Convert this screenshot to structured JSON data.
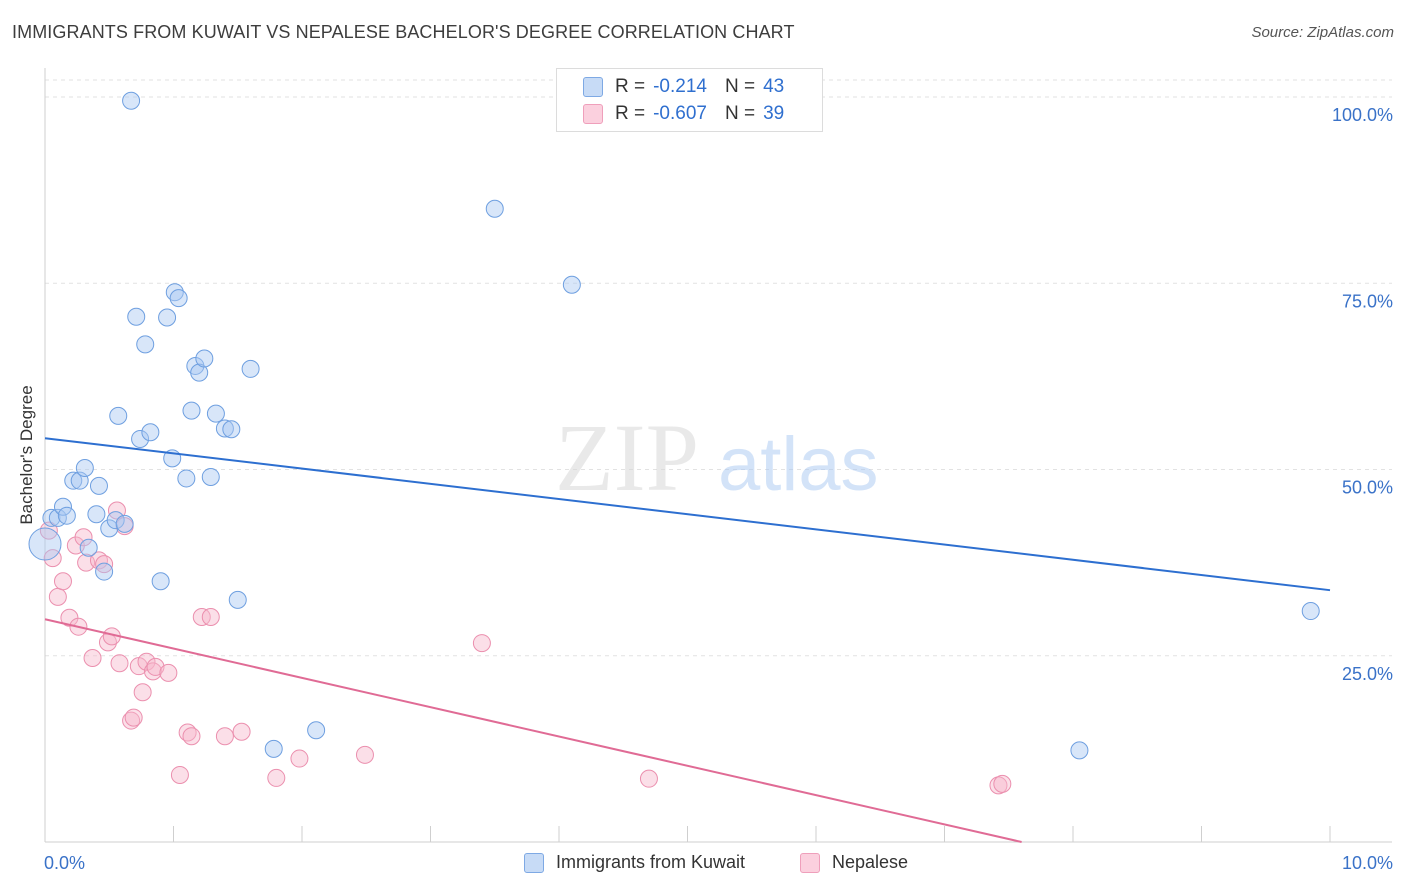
{
  "header": {
    "title": "IMMIGRANTS FROM KUWAIT VS NEPALESE BACHELOR'S DEGREE CORRELATION CHART",
    "source": "Source: ZipAtlas.com"
  },
  "watermark": {
    "zip": "ZIP",
    "atlas": "atlas"
  },
  "colors": {
    "blue_fill": "#a9c8f2",
    "blue_stroke": "#6e9fe0",
    "blue_line": "#2d6fd0",
    "pink_fill": "#f6b9cc",
    "pink_stroke": "#eb8fae",
    "pink_line": "#e06b95",
    "tick_label": "#3a72c8",
    "grid": "#e2e2e2"
  },
  "legend": {
    "rows": [
      {
        "r_label": "R =",
        "r_value": "-0.214",
        "n_label": "N =",
        "n_value": "43"
      },
      {
        "r_label": "R =",
        "r_value": "-0.607",
        "n_label": "N =",
        "n_value": "39"
      }
    ]
  },
  "bottom_legend": [
    "Immigrants from Kuwait",
    "Nepalese"
  ],
  "chart_data": {
    "type": "scatter",
    "title": "IMMIGRANTS FROM KUWAIT VS NEPALESE BACHELOR'S DEGREE CORRELATION CHART",
    "xlabel": "",
    "ylabel": "Bachelor's Degree",
    "xlim": [
      0,
      10
    ],
    "ylim": [
      0,
      100
    ],
    "x_tick_labels": [
      "0.0%",
      "10.0%"
    ],
    "y_ticks": [
      25,
      50,
      75,
      100
    ],
    "y_tick_labels": [
      "25.0%",
      "50.0%",
      "75.0%",
      "100.0%"
    ],
    "grid": true,
    "legend_position": "top-center",
    "series": [
      {
        "name": "Immigrants from Kuwait",
        "r": -0.214,
        "n": 43,
        "trend": {
          "x": [
            0,
            10
          ],
          "y": [
            54.2,
            33.8
          ]
        },
        "points": [
          [
            0.05,
            43.5
          ],
          [
            0.1,
            43.5
          ],
          [
            0.14,
            45.0
          ],
          [
            0.17,
            43.8
          ],
          [
            0.22,
            48.5
          ],
          [
            0.27,
            48.5
          ],
          [
            0.31,
            50.2
          ],
          [
            0.34,
            39.5
          ],
          [
            0.4,
            44.0
          ],
          [
            0.42,
            47.8
          ],
          [
            0.46,
            36.3
          ],
          [
            0.5,
            42.1
          ],
          [
            0.55,
            43.2
          ],
          [
            0.57,
            57.2
          ],
          [
            0.62,
            42.7
          ],
          [
            0.67,
            99.5
          ],
          [
            0.71,
            70.5
          ],
          [
            0.74,
            54.1
          ],
          [
            0.78,
            66.8
          ],
          [
            0.82,
            55.0
          ],
          [
            0.9,
            35.0
          ],
          [
            0.95,
            70.4
          ],
          [
            0.99,
            51.5
          ],
          [
            1.01,
            73.8
          ],
          [
            1.04,
            73.0
          ],
          [
            1.1,
            48.8
          ],
          [
            1.14,
            57.9
          ],
          [
            1.17,
            63.9
          ],
          [
            1.2,
            63.0
          ],
          [
            1.24,
            64.9
          ],
          [
            1.29,
            49.0
          ],
          [
            1.33,
            57.5
          ],
          [
            1.4,
            55.5
          ],
          [
            1.45,
            55.4
          ],
          [
            1.5,
            32.5
          ],
          [
            1.6,
            63.5
          ],
          [
            1.78,
            12.5
          ],
          [
            2.11,
            15.0
          ],
          [
            3.5,
            85.0
          ],
          [
            4.1,
            74.8
          ],
          [
            8.05,
            12.3
          ],
          [
            9.85,
            31.0
          ],
          [
            0.0,
            40.0
          ]
        ]
      },
      {
        "name": "Nepalese",
        "r": -0.607,
        "n": 39,
        "trend": {
          "x": [
            0,
            7.6
          ],
          "y": [
            29.9,
            0
          ]
        },
        "points": [
          [
            0.03,
            41.8
          ],
          [
            0.06,
            38.1
          ],
          [
            0.1,
            32.9
          ],
          [
            0.14,
            35.0
          ],
          [
            0.19,
            30.1
          ],
          [
            0.24,
            39.8
          ],
          [
            0.26,
            28.9
          ],
          [
            0.3,
            40.9
          ],
          [
            0.32,
            37.5
          ],
          [
            0.37,
            24.7
          ],
          [
            0.42,
            37.8
          ],
          [
            0.46,
            37.3
          ],
          [
            0.49,
            26.8
          ],
          [
            0.52,
            27.6
          ],
          [
            0.56,
            44.5
          ],
          [
            0.58,
            24.0
          ],
          [
            0.62,
            42.4
          ],
          [
            0.67,
            16.3
          ],
          [
            0.69,
            16.7
          ],
          [
            0.73,
            23.6
          ],
          [
            0.76,
            20.1
          ],
          [
            0.79,
            24.2
          ],
          [
            0.84,
            22.9
          ],
          [
            0.86,
            23.5
          ],
          [
            0.96,
            22.7
          ],
          [
            1.05,
            9.0
          ],
          [
            1.11,
            14.7
          ],
          [
            1.14,
            14.2
          ],
          [
            1.22,
            30.2
          ],
          [
            1.29,
            30.2
          ],
          [
            1.4,
            14.2
          ],
          [
            1.53,
            14.8
          ],
          [
            1.8,
            8.6
          ],
          [
            1.98,
            11.2
          ],
          [
            2.49,
            11.7
          ],
          [
            3.4,
            26.7
          ],
          [
            4.7,
            8.5
          ],
          [
            7.42,
            7.6
          ],
          [
            7.45,
            7.8
          ]
        ]
      }
    ]
  }
}
